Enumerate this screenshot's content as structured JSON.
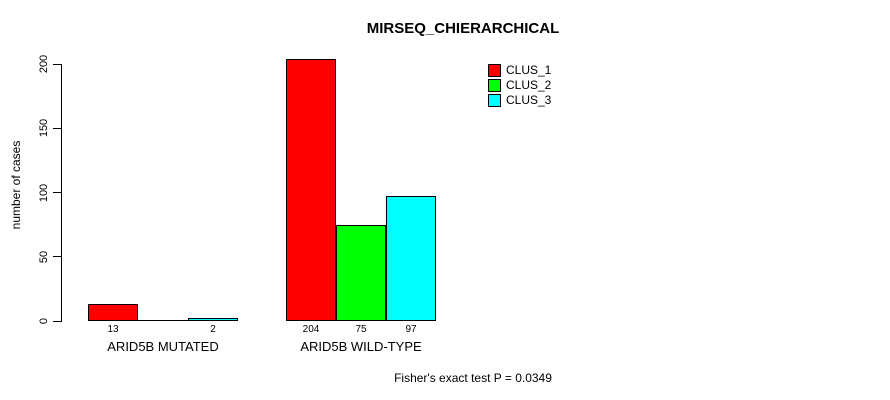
{
  "chart_data": {
    "type": "bar",
    "title": "MIRSEQ_CHIERARCHICAL",
    "ylabel": "number of cases",
    "xlabel": "",
    "categories": [
      "ARID5B MUTATED",
      "ARID5B WILD-TYPE"
    ],
    "series": [
      {
        "name": "CLUS_1",
        "color": "#ff0000",
        "values": [
          13,
          204
        ],
        "labels": [
          "13",
          "204"
        ]
      },
      {
        "name": "CLUS_2",
        "color": "#00ff00",
        "values": [
          0,
          75
        ],
        "labels": [
          "",
          "75"
        ]
      },
      {
        "name": "CLUS_3",
        "color": "#00ffff",
        "values": [
          2,
          97
        ],
        "labels": [
          "2",
          "97"
        ]
      }
    ],
    "yticks": [
      0,
      50,
      100,
      150,
      200
    ],
    "ylim": [
      0,
      204
    ],
    "grid": false,
    "legend_position": "top-right",
    "annotation": "Fisher's exact test P = 0.0349",
    "bar_border_color": "#000000",
    "text_color": "#000000",
    "background_color": "#ffffff"
  }
}
